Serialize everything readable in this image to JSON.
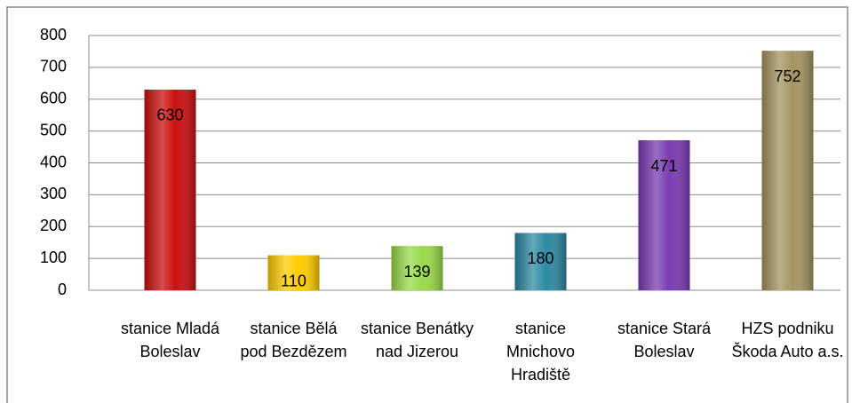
{
  "chart_data": {
    "type": "bar",
    "categories": [
      "stanice Mladá Boleslav",
      "stanice Bělá pod Bezdězem",
      "stanice Benátky nad Jizerou",
      "stanice Mnichovo Hradiště",
      "stanice Stará Boleslav",
      "HZS podniku Škoda Auto a.s."
    ],
    "values": [
      630,
      110,
      139,
      180,
      471,
      752
    ],
    "colors": [
      "#cc1010",
      "#ffcc00",
      "#9ad94a",
      "#2d8aa3",
      "#7b3cb3",
      "#a39462"
    ],
    "ylim": [
      0,
      800
    ],
    "yticks": [
      0,
      100,
      200,
      300,
      400,
      500,
      600,
      700,
      800
    ],
    "grid": true
  }
}
